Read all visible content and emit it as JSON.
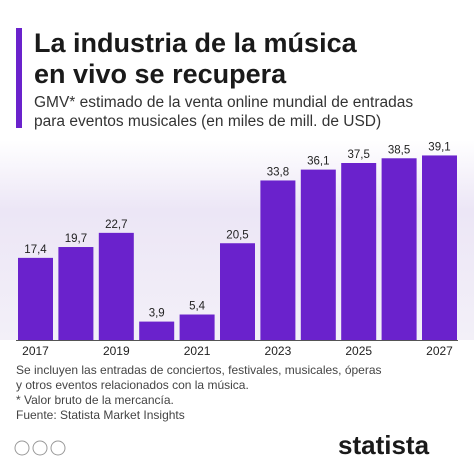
{
  "chart_data": {
    "type": "bar",
    "title": [
      "La industria de la música",
      "en vivo se recupera"
    ],
    "subtitle": [
      "GMV* estimado de la venta online mundial de entradas",
      "para eventos musicales (en miles de mill. de USD)"
    ],
    "categories": [
      "2017",
      null,
      "2019",
      null,
      "2021",
      null,
      "2023",
      null,
      "2025",
      null,
      "2027"
    ],
    "values": [
      17.4,
      19.7,
      22.7,
      3.9,
      5.4,
      20.5,
      33.8,
      36.1,
      37.5,
      38.5,
      39.1
    ],
    "value_labels": [
      "17,4",
      "19,7",
      "22,7",
      "3,9",
      "5,4",
      "20,5",
      "33,8",
      "36,1",
      "37,5",
      "38,5",
      "39,1"
    ],
    "color": "#6a22cc",
    "notes": [
      "Se incluyen las entradas de conciertos, festivales, musicales, óperas",
      "y otros eventos relacionados con la música.",
      "* Valor bruto de la mercancía.",
      "Fuente: Statista Market Insights"
    ],
    "brand": "statista"
  }
}
